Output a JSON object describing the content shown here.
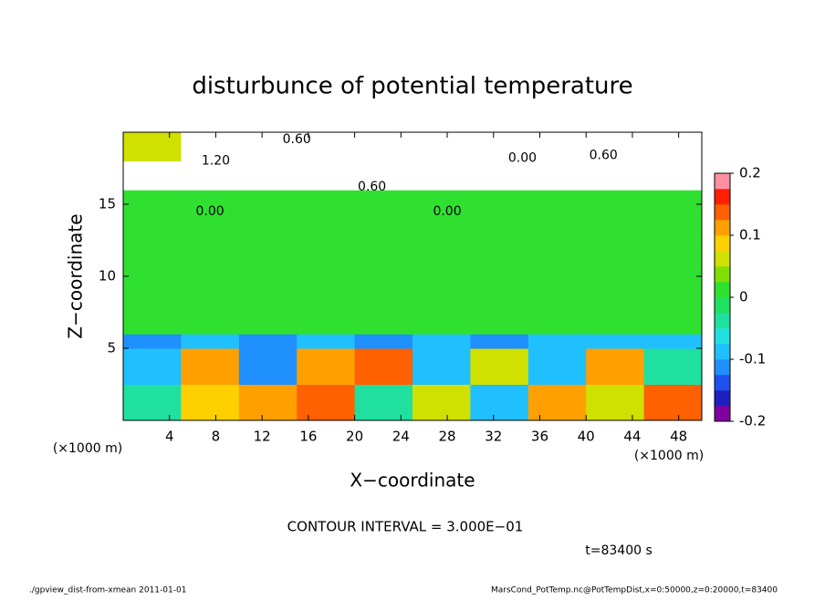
{
  "chart_data": {
    "type": "heatmap",
    "title": "disturbunce of potential temperature",
    "xlabel": "X−coordinate",
    "ylabel": "Z−coordinate",
    "x_unit_label": "(×1000 m)",
    "xlim": [
      0,
      50
    ],
    "ylim": [
      0,
      20
    ],
    "xticks": [
      4,
      8,
      12,
      16,
      20,
      24,
      28,
      32,
      36,
      40,
      44,
      48
    ],
    "yticks": [
      5,
      10,
      15
    ],
    "x_edges": [
      0,
      5,
      10,
      15,
      20,
      25,
      30,
      35,
      40,
      45,
      50
    ],
    "y_edges": [
      0,
      2.5,
      5,
      6,
      10,
      16,
      18,
      20
    ],
    "values": [
      [
        -0.05,
        0.08,
        0.1,
        0.15,
        -0.05,
        0.05,
        -0.08,
        0.1,
        0.05,
        0.15
      ],
      [
        -0.1,
        0.12,
        -0.12,
        0.1,
        0.15,
        -0.1,
        0.05,
        -0.1,
        0.12,
        -0.05
      ],
      [
        -0.12,
        -0.1,
        -0.12,
        -0.1,
        -0.12,
        -0.1,
        -0.12,
        -0.1,
        -0.1,
        -0.1
      ],
      [
        0.01,
        0,
        0,
        0,
        0,
        0,
        0,
        0,
        0,
        0.01
      ],
      [
        0,
        0,
        0,
        0,
        0,
        0,
        0,
        0,
        0.01,
        0
      ],
      [
        0.25,
        0.25,
        0.25,
        0.25,
        0.25,
        0.25,
        0.25,
        0.25,
        0.25,
        0.25
      ],
      [
        0.05,
        0.25,
        0.25,
        0.25,
        0.25,
        0.25,
        0.25,
        0.25,
        0.25,
        0.25
      ]
    ],
    "colorbar": {
      "lim": [
        -0.2,
        0.2
      ],
      "ticks": [
        -0.2,
        -0.1,
        0,
        0.1,
        0.2
      ],
      "colors": [
        "#8000a0",
        "#2020c0",
        "#2050f0",
        "#2090ff",
        "#20c0ff",
        "#20e0e0",
        "#20e0a0",
        "#20e060",
        "#30e030",
        "#80e000",
        "#d0e000",
        "#ffd000",
        "#ffa000",
        "#ff6000",
        "#ff2000",
        "#ff90a0"
      ]
    },
    "contour_labels": [
      {
        "text": "0.00",
        "x": 7.5,
        "y": 14.5
      },
      {
        "text": "0.00",
        "x": 28,
        "y": 14.5
      },
      {
        "text": "0.60",
        "x": 21.5,
        "y": 16.2
      },
      {
        "text": "1.20",
        "x": 8,
        "y": 18
      },
      {
        "text": "0.00",
        "x": 34.5,
        "y": 18.2
      },
      {
        "text": "0.60",
        "x": 41.5,
        "y": 18.4
      },
      {
        "text": "0.60",
        "x": 15,
        "y": 19.5
      }
    ],
    "contour_interval": "CONTOUR INTERVAL = 3.000E−01",
    "time_label": "t=83400 s",
    "footer_left": "./gpview_dist-from-xmean  2011-01-01",
    "footer_right": "MarsCond_PotTemp.nc@PotTempDist,x=0:50000,z=0:20000,t=83400"
  }
}
